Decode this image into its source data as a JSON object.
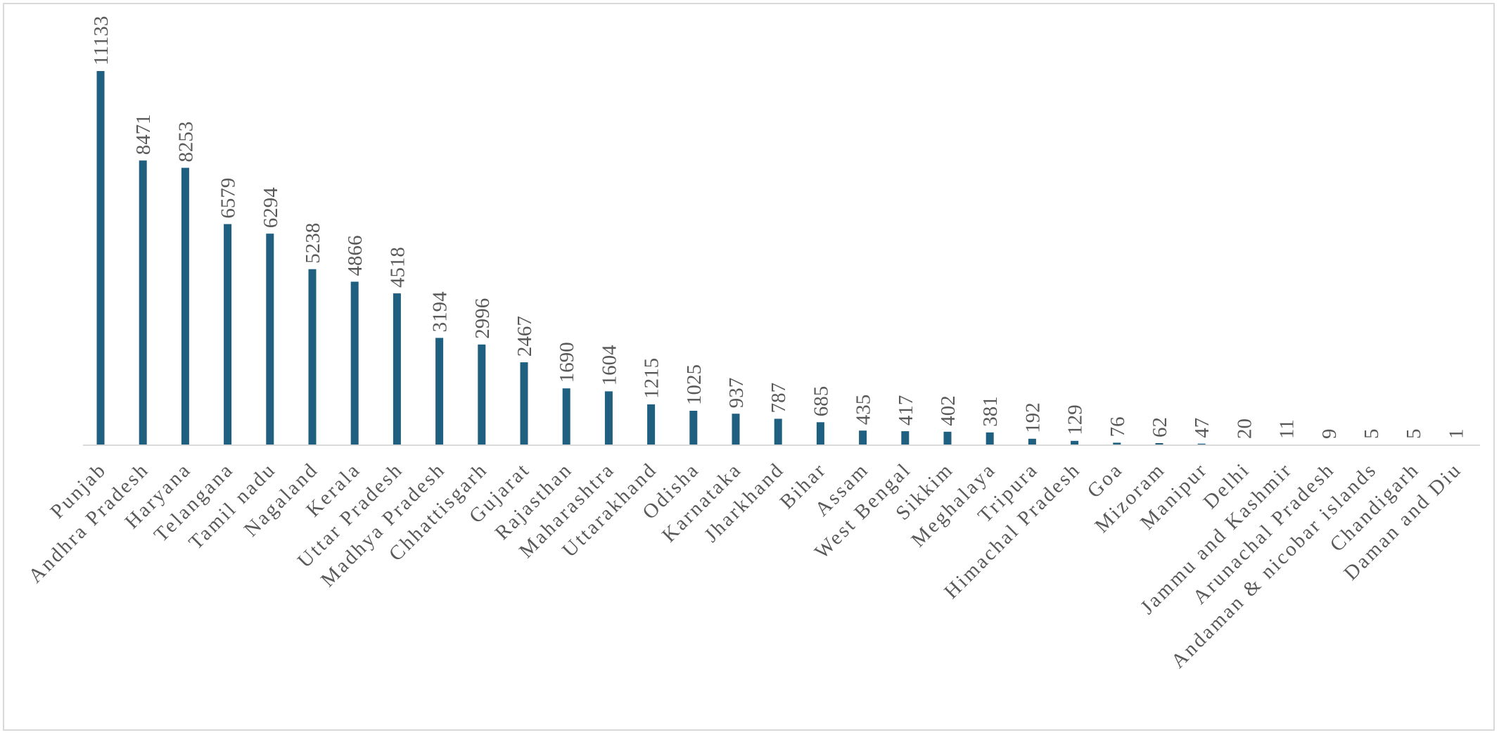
{
  "chart_data": {
    "type": "bar",
    "title": "",
    "xlabel": "",
    "ylabel": "",
    "ylim": [
      0,
      11133
    ],
    "grid": false,
    "legend": "none",
    "bar_color": "#1f5f7f",
    "axis_color": "#d9d9d9",
    "label_color": "#595959",
    "categories": [
      "Punjab",
      "Andhra Pradesh",
      "Haryana",
      "Telangana",
      "Tamil nadu",
      "Nagaland",
      "Kerala",
      "Uttar Pradesh",
      "Madhya Pradesh",
      "Chhattisgarh",
      "Gujarat",
      "Rajasthan",
      "Maharashtra",
      "Uttarakhand",
      "Odisha",
      "Karnataka",
      "Jharkhand",
      "Bihar",
      "Assam",
      "West Bengal",
      "Sikkim",
      "Meghalaya",
      "Tripura",
      "Himachal Pradesh",
      "Goa",
      "Mizoram",
      "Manipur",
      "Delhi",
      "Jammu and Kashmir",
      "Arunachal Pradesh",
      "Andaman & nicobar islands",
      "Chandigarh",
      "Daman and Diu"
    ],
    "values": [
      11133,
      8471,
      8253,
      6579,
      6294,
      5238,
      4866,
      4518,
      3194,
      2996,
      2467,
      1690,
      1604,
      1215,
      1025,
      937,
      787,
      685,
      435,
      417,
      402,
      381,
      192,
      129,
      76,
      62,
      47,
      20,
      11,
      9,
      5,
      5,
      1
    ]
  }
}
